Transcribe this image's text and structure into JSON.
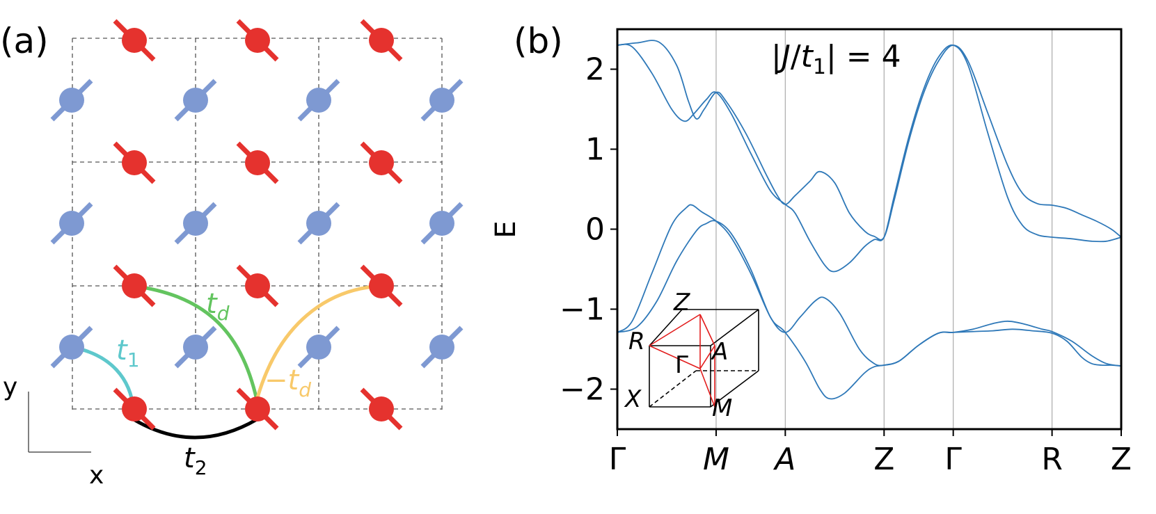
{
  "colors": {
    "red": "#e5322e",
    "blue": "#7e99d2",
    "cyan": "#5ec8cc",
    "green": "#63c45f",
    "orange": "#f8c96a",
    "band": "#2e78b8",
    "grid": "#aaaaaa",
    "bz_red": "#e21c1c"
  },
  "panel_a": {
    "label": "(a)",
    "axis_x": "x",
    "axis_y": "y",
    "hop_t1": {
      "base": "t",
      "sub": "1"
    },
    "hop_t2": {
      "base": "t",
      "sub": "2"
    },
    "hop_td": {
      "base": "t",
      "sub": "d"
    },
    "hop_mtd": {
      "minus": "−",
      "base": "t",
      "sub": "d"
    }
  },
  "panel_b": {
    "label": "(b)",
    "ylabel": "E",
    "title": {
      "pre": "|",
      "J": "J",
      "slash": "/",
      "t": "t",
      "sub": "1",
      "post": "| = 4"
    },
    "bz": {
      "Z": "Z",
      "R": "R",
      "Gamma": "Γ",
      "A": "A",
      "X": "X",
      "M": "M"
    }
  },
  "chart_data": {
    "type": "line",
    "title": "|J/t1| = 4",
    "xlabel": "",
    "ylabel": "E",
    "ylim": [
      -2.5,
      2.5
    ],
    "yticks": [
      -2,
      -1,
      0,
      1,
      2
    ],
    "ytick_labels": [
      "−2",
      "−1",
      "0",
      "1",
      "2"
    ],
    "kpath": [
      {
        "label": "Γ",
        "italic": false,
        "s": 0
      },
      {
        "label": "M",
        "italic": true,
        "s": 1
      },
      {
        "label": "A",
        "italic": true,
        "s": 1.7
      },
      {
        "label": "Z",
        "italic": false,
        "s": 2.7
      },
      {
        "label": "Γ",
        "italic": false,
        "s": 3.4
      },
      {
        "label": "R",
        "italic": false,
        "s": 4.4
      },
      {
        "label": "Z",
        "italic": false,
        "s": 5.1
      }
    ],
    "series": [
      {
        "name": "band 1",
        "points": [
          [
            0,
            2.3
          ],
          [
            0.2,
            2.33
          ],
          [
            0.42,
            2.34
          ],
          [
            0.6,
            2.05
          ],
          [
            0.72,
            1.6
          ],
          [
            0.8,
            1.38
          ],
          [
            0.88,
            1.5
          ],
          [
            1,
            1.71
          ],
          [
            1.1,
            1.6
          ],
          [
            1.3,
            1.2
          ],
          [
            1.5,
            0.7
          ],
          [
            1.62,
            0.42
          ],
          [
            1.7,
            0.31
          ],
          [
            1.8,
            0.42
          ],
          [
            1.95,
            0.6
          ],
          [
            2.05,
            0.72
          ],
          [
            2.2,
            0.58
          ],
          [
            2.35,
            0.2
          ],
          [
            2.5,
            -0.02
          ],
          [
            2.6,
            -0.09
          ],
          [
            2.7,
            -0.1
          ],
          [
            2.8,
            0.35
          ],
          [
            2.95,
            1.1
          ],
          [
            3.1,
            1.7
          ],
          [
            3.25,
            2.1
          ],
          [
            3.4,
            2.3
          ],
          [
            3.55,
            2.1
          ],
          [
            3.75,
            1.45
          ],
          [
            3.95,
            0.8
          ],
          [
            4.1,
            0.45
          ],
          [
            4.25,
            0.32
          ],
          [
            4.4,
            0.3
          ],
          [
            4.55,
            0.26
          ],
          [
            4.7,
            0.18
          ],
          [
            4.85,
            0.1
          ],
          [
            5.0,
            0.0
          ],
          [
            5.1,
            -0.1
          ]
        ]
      },
      {
        "name": "band 2",
        "points": [
          [
            0,
            2.3
          ],
          [
            0.15,
            2.28
          ],
          [
            0.35,
            1.95
          ],
          [
            0.55,
            1.5
          ],
          [
            0.68,
            1.35
          ],
          [
            0.78,
            1.45
          ],
          [
            0.9,
            1.62
          ],
          [
            1,
            1.71
          ],
          [
            1.15,
            1.45
          ],
          [
            1.35,
            0.95
          ],
          [
            1.55,
            0.48
          ],
          [
            1.7,
            0.31
          ],
          [
            1.8,
            0.2
          ],
          [
            1.95,
            -0.15
          ],
          [
            2.1,
            -0.45
          ],
          [
            2.2,
            -0.53
          ],
          [
            2.35,
            -0.42
          ],
          [
            2.5,
            -0.22
          ],
          [
            2.6,
            -0.13
          ],
          [
            2.7,
            -0.1
          ],
          [
            2.8,
            0.4
          ],
          [
            2.95,
            1.15
          ],
          [
            3.1,
            1.75
          ],
          [
            3.25,
            2.15
          ],
          [
            3.4,
            2.3
          ],
          [
            3.55,
            2.05
          ],
          [
            3.75,
            1.2
          ],
          [
            3.95,
            0.4
          ],
          [
            4.1,
            0.05
          ],
          [
            4.25,
            -0.07
          ],
          [
            4.4,
            -0.1
          ],
          [
            4.6,
            -0.12
          ],
          [
            4.8,
            -0.15
          ],
          [
            4.95,
            -0.15
          ],
          [
            5.1,
            -0.1
          ]
        ]
      },
      {
        "name": "band 3",
        "points": [
          [
            0,
            -1.29
          ],
          [
            0.15,
            -1.15
          ],
          [
            0.35,
            -0.55
          ],
          [
            0.55,
            0.05
          ],
          [
            0.7,
            0.27
          ],
          [
            0.76,
            0.3
          ],
          [
            0.85,
            0.22
          ],
          [
            1,
            0.1
          ],
          [
            1.15,
            -0.1
          ],
          [
            1.35,
            -0.55
          ],
          [
            1.55,
            -1.1
          ],
          [
            1.7,
            -1.29
          ],
          [
            1.85,
            -1.1
          ],
          [
            2.0,
            -0.9
          ],
          [
            2.1,
            -0.86
          ],
          [
            2.25,
            -1.05
          ],
          [
            2.45,
            -1.5
          ],
          [
            2.6,
            -1.68
          ],
          [
            2.7,
            -1.7
          ],
          [
            2.85,
            -1.65
          ],
          [
            3.05,
            -1.45
          ],
          [
            3.25,
            -1.3
          ],
          [
            3.4,
            -1.29
          ],
          [
            3.6,
            -1.25
          ],
          [
            3.8,
            -1.18
          ],
          [
            3.95,
            -1.15
          ],
          [
            4.1,
            -1.18
          ],
          [
            4.3,
            -1.25
          ],
          [
            4.4,
            -1.28
          ],
          [
            4.6,
            -1.4
          ],
          [
            4.8,
            -1.58
          ],
          [
            4.95,
            -1.68
          ],
          [
            5.1,
            -1.71
          ]
        ]
      },
      {
        "name": "band 4",
        "points": [
          [
            0,
            -1.29
          ],
          [
            0.2,
            -1.22
          ],
          [
            0.4,
            -0.9
          ],
          [
            0.6,
            -0.4
          ],
          [
            0.8,
            -0.02
          ],
          [
            0.9,
            0.07
          ],
          [
            1,
            0.1
          ],
          [
            1.15,
            -0.05
          ],
          [
            1.35,
            -0.5
          ],
          [
            1.55,
            -1.1
          ],
          [
            1.7,
            -1.29
          ],
          [
            1.9,
            -1.65
          ],
          [
            2.05,
            -2.0
          ],
          [
            2.15,
            -2.12
          ],
          [
            2.3,
            -2.05
          ],
          [
            2.5,
            -1.8
          ],
          [
            2.6,
            -1.72
          ],
          [
            2.7,
            -1.7
          ],
          [
            2.85,
            -1.65
          ],
          [
            3.05,
            -1.45
          ],
          [
            3.25,
            -1.3
          ],
          [
            3.4,
            -1.29
          ],
          [
            3.6,
            -1.28
          ],
          [
            3.8,
            -1.27
          ],
          [
            4.0,
            -1.25
          ],
          [
            4.2,
            -1.27
          ],
          [
            4.4,
            -1.3
          ],
          [
            4.55,
            -1.4
          ],
          [
            4.7,
            -1.6
          ],
          [
            4.8,
            -1.68
          ],
          [
            4.9,
            -1.7
          ],
          [
            5.0,
            -1.7
          ],
          [
            5.1,
            -1.71
          ]
        ]
      }
    ]
  }
}
